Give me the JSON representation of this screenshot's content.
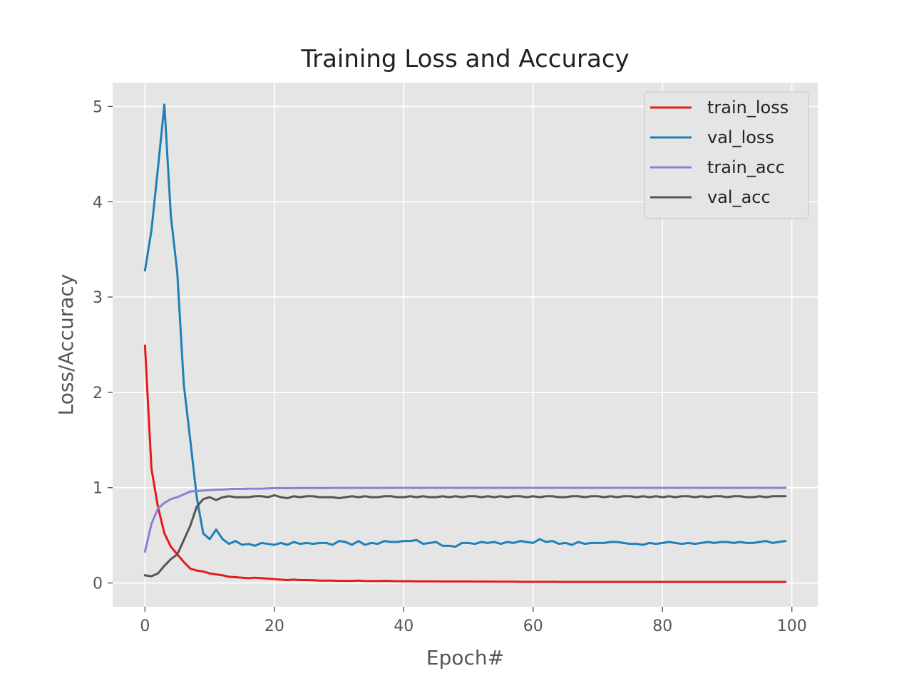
{
  "chart_data": {
    "type": "line",
    "title": "Training Loss and Accuracy",
    "xlabel": "Epoch#",
    "ylabel": "Loss/Accuracy",
    "xlim": [
      -5,
      104
    ],
    "ylim": [
      -0.25,
      5.25
    ],
    "xticks": [
      0,
      20,
      40,
      60,
      80,
      100
    ],
    "yticks": [
      0,
      1,
      2,
      3,
      4,
      5
    ],
    "grid": true,
    "legend_position": "top-right",
    "x": [
      0,
      1,
      2,
      3,
      4,
      5,
      6,
      7,
      8,
      9,
      10,
      11,
      12,
      13,
      14,
      15,
      16,
      17,
      18,
      19,
      20,
      21,
      22,
      23,
      24,
      25,
      26,
      27,
      28,
      29,
      30,
      31,
      32,
      33,
      34,
      35,
      36,
      37,
      38,
      39,
      40,
      41,
      42,
      43,
      44,
      45,
      46,
      47,
      48,
      49,
      50,
      51,
      52,
      53,
      54,
      55,
      56,
      57,
      58,
      59,
      60,
      61,
      62,
      63,
      64,
      65,
      66,
      67,
      68,
      69,
      70,
      71,
      72,
      73,
      74,
      75,
      76,
      77,
      78,
      79,
      80,
      81,
      82,
      83,
      84,
      85,
      86,
      87,
      88,
      89,
      90,
      91,
      92,
      93,
      94,
      95,
      96,
      97,
      98,
      99
    ],
    "series": [
      {
        "name": "train_loss",
        "color": "#e41a1c",
        "values": [
          2.49,
          1.2,
          0.8,
          0.52,
          0.38,
          0.3,
          0.22,
          0.15,
          0.13,
          0.12,
          0.1,
          0.09,
          0.08,
          0.065,
          0.06,
          0.055,
          0.05,
          0.055,
          0.05,
          0.045,
          0.04,
          0.035,
          0.03,
          0.035,
          0.03,
          0.03,
          0.028,
          0.025,
          0.025,
          0.025,
          0.022,
          0.022,
          0.022,
          0.025,
          0.02,
          0.02,
          0.02,
          0.022,
          0.02,
          0.018,
          0.018,
          0.018,
          0.016,
          0.016,
          0.016,
          0.016,
          0.015,
          0.015,
          0.015,
          0.015,
          0.015,
          0.014,
          0.014,
          0.014,
          0.013,
          0.013,
          0.013,
          0.013,
          0.012,
          0.012,
          0.012,
          0.012,
          0.012,
          0.012,
          0.011,
          0.011,
          0.011,
          0.011,
          0.011,
          0.011,
          0.011,
          0.011,
          0.011,
          0.011,
          0.011,
          0.011,
          0.011,
          0.011,
          0.011,
          0.011,
          0.011,
          0.011,
          0.011,
          0.011,
          0.011,
          0.011,
          0.011,
          0.011,
          0.011,
          0.011,
          0.011,
          0.011,
          0.011,
          0.011,
          0.011,
          0.011,
          0.011,
          0.011,
          0.011,
          0.011
        ]
      },
      {
        "name": "val_loss",
        "color": "#1f7fb8",
        "values": [
          3.28,
          3.7,
          4.35,
          5.02,
          3.85,
          3.25,
          2.08,
          1.5,
          0.9,
          0.52,
          0.46,
          0.56,
          0.46,
          0.41,
          0.44,
          0.4,
          0.41,
          0.39,
          0.42,
          0.41,
          0.4,
          0.42,
          0.4,
          0.43,
          0.41,
          0.42,
          0.41,
          0.42,
          0.42,
          0.4,
          0.44,
          0.43,
          0.4,
          0.44,
          0.4,
          0.42,
          0.41,
          0.44,
          0.43,
          0.43,
          0.44,
          0.44,
          0.45,
          0.41,
          0.42,
          0.43,
          0.39,
          0.39,
          0.38,
          0.42,
          0.42,
          0.41,
          0.43,
          0.42,
          0.43,
          0.41,
          0.43,
          0.42,
          0.44,
          0.43,
          0.42,
          0.46,
          0.43,
          0.44,
          0.41,
          0.42,
          0.4,
          0.43,
          0.41,
          0.42,
          0.42,
          0.42,
          0.43,
          0.43,
          0.42,
          0.41,
          0.41,
          0.4,
          0.42,
          0.41,
          0.42,
          0.43,
          0.42,
          0.41,
          0.42,
          0.41,
          0.42,
          0.43,
          0.42,
          0.43,
          0.43,
          0.42,
          0.43,
          0.42,
          0.42,
          0.43,
          0.44,
          0.42,
          0.43,
          0.44
        ]
      },
      {
        "name": "train_acc",
        "color": "#8c7fd6",
        "values": [
          0.33,
          0.62,
          0.78,
          0.84,
          0.88,
          0.9,
          0.93,
          0.96,
          0.965,
          0.97,
          0.975,
          0.978,
          0.98,
          0.985,
          0.988,
          0.988,
          0.99,
          0.99,
          0.99,
          0.992,
          0.995,
          0.995,
          0.995,
          0.995,
          0.996,
          0.996,
          0.996,
          0.996,
          0.996,
          0.997,
          0.997,
          0.997,
          0.997,
          0.997,
          0.997,
          0.997,
          0.997,
          0.997,
          0.998,
          0.998,
          0.998,
          0.998,
          0.998,
          0.998,
          0.998,
          0.998,
          0.998,
          0.998,
          0.998,
          0.998,
          0.998,
          0.998,
          0.998,
          0.998,
          0.998,
          0.998,
          0.998,
          0.998,
          0.998,
          0.998,
          0.998,
          0.998,
          0.998,
          0.998,
          0.998,
          0.998,
          0.998,
          0.998,
          0.998,
          0.998,
          0.998,
          0.998,
          0.998,
          0.998,
          0.998,
          0.998,
          0.998,
          0.998,
          0.998,
          0.998,
          0.998,
          0.998,
          0.998,
          0.998,
          0.998,
          0.998,
          0.998,
          0.998,
          0.998,
          0.998,
          0.998,
          0.998,
          0.998,
          0.998,
          0.998,
          0.998,
          0.998,
          0.998,
          0.998,
          0.998
        ]
      },
      {
        "name": "val_acc",
        "color": "#555555",
        "values": [
          0.08,
          0.07,
          0.1,
          0.18,
          0.25,
          0.3,
          0.45,
          0.6,
          0.8,
          0.88,
          0.9,
          0.87,
          0.9,
          0.91,
          0.9,
          0.9,
          0.9,
          0.91,
          0.91,
          0.9,
          0.92,
          0.9,
          0.89,
          0.91,
          0.9,
          0.91,
          0.91,
          0.9,
          0.9,
          0.9,
          0.89,
          0.9,
          0.91,
          0.9,
          0.91,
          0.9,
          0.9,
          0.91,
          0.91,
          0.9,
          0.9,
          0.91,
          0.9,
          0.91,
          0.9,
          0.9,
          0.91,
          0.9,
          0.91,
          0.9,
          0.91,
          0.91,
          0.9,
          0.91,
          0.9,
          0.91,
          0.9,
          0.91,
          0.91,
          0.9,
          0.91,
          0.9,
          0.91,
          0.91,
          0.9,
          0.9,
          0.91,
          0.91,
          0.9,
          0.91,
          0.91,
          0.9,
          0.91,
          0.9,
          0.91,
          0.91,
          0.9,
          0.91,
          0.9,
          0.91,
          0.9,
          0.91,
          0.9,
          0.91,
          0.91,
          0.9,
          0.91,
          0.9,
          0.91,
          0.91,
          0.9,
          0.91,
          0.91,
          0.9,
          0.9,
          0.91,
          0.9,
          0.91,
          0.91,
          0.91
        ]
      }
    ]
  }
}
